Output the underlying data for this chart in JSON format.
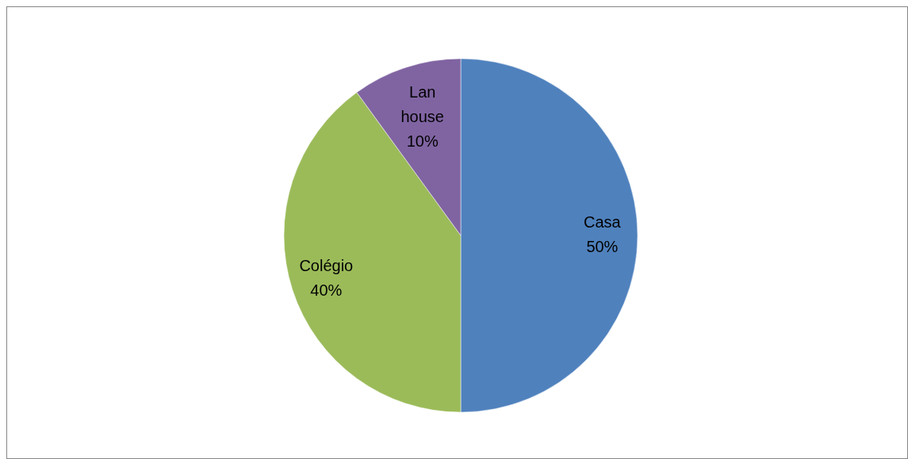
{
  "chart_data": {
    "type": "pie",
    "categories": [
      "Casa",
      "Colégio",
      "Lan house"
    ],
    "values": [
      50,
      40,
      10
    ],
    "colors": [
      "#4f81bd",
      "#9bbb59",
      "#8064a2"
    ],
    "value_labels": [
      "50%",
      "40%",
      "10%"
    ]
  }
}
